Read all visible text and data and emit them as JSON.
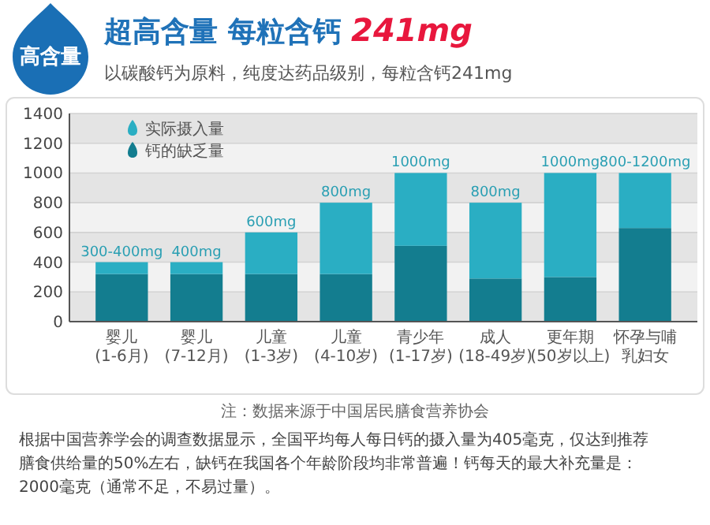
{
  "chart_data": {
    "type": "bar",
    "title": "超高含量 每粒含钙 241mg",
    "subtitle": "以碳酸钙为原料，纯度达药品级别，每粒含钙241mg",
    "categories": [
      "婴儿\n(1-6月)",
      "婴儿\n(7-12月)",
      "儿童\n(1-3岁)",
      "儿童\n(4-10岁)",
      "青少年\n(1-17岁)",
      "成人\n(18-49岁)",
      "更年期\n(50岁以上)",
      "怀孕与哺乳妇女"
    ],
    "stacked": true,
    "series": [
      {
        "name": "钙的缺乏量",
        "color": "#137d8f",
        "values": [
          320,
          320,
          320,
          320,
          510,
          290,
          300,
          630
        ]
      },
      {
        "name": "实际摄入量",
        "color": "#2aaec3",
        "values": [
          80,
          80,
          280,
          480,
          490,
          510,
          700,
          370
        ]
      }
    ],
    "totals": [
      "300-400mg",
      "400mg",
      "600mg",
      "800mg",
      "1000mg",
      "800mg",
      "1000mg",
      "800-1200mg"
    ],
    "ylim": [
      0,
      1400
    ],
    "yticks": [
      0,
      200,
      400,
      600,
      800,
      1000,
      1200,
      1400
    ],
    "grid": "y",
    "legend": "top left",
    "annotations": [
      "高含量",
      "注：数据来源于中国居民膳食营养协会",
      "根据中国营养学会的调查数据显示，全国平均每人每日钙的摄入量为405毫克，仅达到推荐膳食供给量的50%左右，缺钙在我国各个年龄阶段均非常普遍！钙每天的最大补充量是：2000毫克（通常不足，不易过量）。"
    ]
  }
}
